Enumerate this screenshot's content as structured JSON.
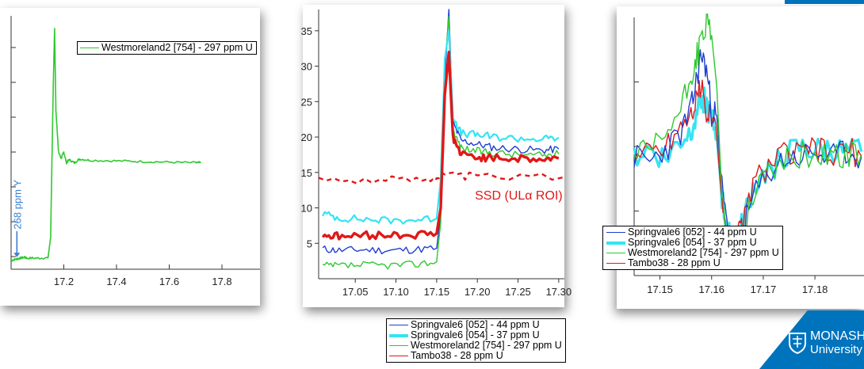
{
  "colors": {
    "blue": "#1f3fd0",
    "cyan": "#35e4f2",
    "green": "#2fc82f",
    "red": "#e01818",
    "annot": "#3b7fd3",
    "brand": "#0073bd"
  },
  "chart_data": [
    {
      "type": "line",
      "xlim": [
        17.0,
        17.8
      ],
      "x_ticks": [
        "17.2",
        "17.4",
        "17.6",
        "17.8"
      ],
      "series": [
        {
          "name": "Westmoreland2 [754]  - 297 ppm U",
          "color": "green",
          "x": [
            17.0,
            17.02,
            17.03,
            17.05,
            17.06,
            17.1,
            17.14,
            17.15,
            17.16,
            17.165,
            17.17,
            17.18,
            17.19,
            17.2,
            17.21,
            17.22,
            17.24,
            17.26,
            17.3,
            17.4,
            17.5,
            17.6,
            17.7,
            17.72
          ],
          "y": [
            1.4,
            1.6,
            1.7,
            1.9,
            1.75,
            1.75,
            1.8,
            5,
            29,
            38,
            25,
            18.5,
            17.5,
            18.5,
            16.8,
            17.3,
            16.8,
            17.4,
            17.2,
            17.1,
            17.0,
            16.9,
            16.8,
            16.8
          ]
        }
      ],
      "annotation": "268 ppm Y",
      "legend": "top-right"
    },
    {
      "type": "line",
      "xlim": [
        17.005,
        17.305
      ],
      "ylim": [
        0,
        38
      ],
      "x_ticks": [
        "17.05",
        "17.10",
        "17.15",
        "17.20",
        "17.25",
        "17.30"
      ],
      "y_ticks": [
        "5",
        "10",
        "15",
        "20",
        "25",
        "30",
        "35"
      ],
      "annotation": "SSD (ULα ROI)",
      "series": [
        {
          "name": "Springvale6 [052] - 44 ppm U",
          "color": "blue",
          "x": [
            17.01,
            17.03,
            17.06,
            17.09,
            17.12,
            17.15,
            17.155,
            17.16,
            17.165,
            17.17,
            17.18,
            17.2,
            17.22,
            17.25,
            17.28,
            17.3
          ],
          "y": [
            4.2,
            4.0,
            4.1,
            4.0,
            4.1,
            4.3,
            9,
            28,
            38,
            22,
            19.5,
            19,
            18.5,
            18.3,
            18.1,
            18.3
          ]
        },
        {
          "name": "Springvale6 [054]  - 37 ppm U",
          "color": "cyan",
          "x": [
            17.01,
            17.03,
            17.06,
            17.09,
            17.12,
            17.15,
            17.155,
            17.16,
            17.165,
            17.17,
            17.18,
            17.2,
            17.22,
            17.25,
            17.28,
            17.3
          ],
          "y": [
            9.2,
            8.6,
            8.4,
            8.2,
            8.3,
            8.5,
            14,
            31,
            35,
            23,
            20.5,
            20.3,
            20.0,
            19.8,
            19.7,
            19.9
          ]
        },
        {
          "name": "Westmoreland2 [754]  - 297 ppm U",
          "color": "green",
          "x": [
            17.01,
            17.03,
            17.06,
            17.09,
            17.12,
            17.15,
            17.155,
            17.16,
            17.165,
            17.17,
            17.18,
            17.2,
            17.22,
            17.25,
            17.28,
            17.3
          ],
          "y": [
            1.8,
            1.8,
            1.9,
            1.9,
            2.0,
            2.4,
            8,
            30,
            37,
            21,
            18.5,
            18.0,
            17.8,
            17.5,
            17.4,
            17.6
          ]
        },
        {
          "name": "Tambo38 - 28 ppm U",
          "color": "red",
          "x": [
            17.01,
            17.03,
            17.06,
            17.09,
            17.12,
            17.15,
            17.155,
            17.16,
            17.165,
            17.17,
            17.18,
            17.2,
            17.22,
            17.25,
            17.28,
            17.3
          ],
          "y": [
            6.2,
            6.0,
            6.1,
            6.2,
            6.2,
            6.4,
            10,
            26,
            32,
            20,
            17.5,
            17.2,
            17.0,
            17.0,
            16.8,
            17.0
          ]
        },
        {
          "name": "SSD",
          "color": "red",
          "dashed": true,
          "x": [
            17.005,
            17.08,
            17.14,
            17.16,
            17.2,
            17.305
          ],
          "y": [
            14.0,
            13.9,
            14.1,
            14.6,
            14.4,
            14.3
          ]
        }
      ],
      "legend": "below"
    },
    {
      "type": "line",
      "xlim": [
        17.145,
        17.1895
      ],
      "ylim": [
        0,
        10
      ],
      "x_ticks": [
        "17.15",
        "17.16",
        "17.17",
        "17.18"
      ],
      "series": [
        {
          "name": "Springvale6 [052] - 44 ppm U",
          "color": "blue",
          "x": [
            17.145,
            17.148,
            17.151,
            17.154,
            17.156,
            17.157,
            17.158,
            17.159,
            17.16,
            17.161,
            17.162,
            17.163,
            17.164,
            17.165,
            17.166,
            17.168,
            17.171,
            17.174,
            17.177,
            17.18,
            17.183,
            17.186,
            17.189
          ],
          "y": [
            4.6,
            4.4,
            4.9,
            5.5,
            6.4,
            7.5,
            8.6,
            8.0,
            6.4,
            6.2,
            3.4,
            1.9,
            1.2,
            1.1,
            1.7,
            3.0,
            4.0,
            4.5,
            4.6,
            4.8,
            4.5,
            4.8,
            4.6
          ]
        },
        {
          "name": "Springvale6 [054]  - 37 ppm U",
          "color": "cyan",
          "x": [
            17.145,
            17.148,
            17.151,
            17.154,
            17.156,
            17.157,
            17.158,
            17.159,
            17.16,
            17.161,
            17.162,
            17.163,
            17.164,
            17.165,
            17.166,
            17.168,
            17.171,
            17.174,
            17.177,
            17.18,
            17.183,
            17.186,
            17.189
          ],
          "y": [
            4.6,
            4.9,
            4.5,
            5.2,
            5.6,
            6.4,
            7.0,
            6.6,
            6.0,
            5.4,
            3.0,
            1.7,
            1.3,
            1.2,
            2.0,
            3.4,
            4.1,
            4.6,
            4.9,
            4.8,
            4.9,
            4.7,
            4.8
          ]
        },
        {
          "name": "Westmoreland2 [754]  - 297 ppm U",
          "color": "green",
          "x": [
            17.145,
            17.148,
            17.151,
            17.154,
            17.156,
            17.157,
            17.158,
            17.159,
            17.16,
            17.161,
            17.162,
            17.163,
            17.164,
            17.165,
            17.166,
            17.168,
            17.171,
            17.174,
            17.177,
            17.18,
            17.183,
            17.186,
            17.189
          ],
          "y": [
            4.7,
            4.7,
            5.4,
            6.4,
            7.6,
            8.4,
            9.1,
            9.7,
            9.3,
            7.3,
            3.0,
            1.4,
            1.0,
            1.1,
            1.8,
            3.2,
            4.1,
            4.4,
            4.7,
            4.6,
            4.8,
            4.6,
            4.7
          ]
        },
        {
          "name": "Tambo38 - 28 ppm U",
          "color": "red",
          "x": [
            17.145,
            17.148,
            17.151,
            17.154,
            17.156,
            17.157,
            17.158,
            17.159,
            17.16,
            17.161,
            17.162,
            17.163,
            17.164,
            17.165,
            17.166,
            17.168,
            17.171,
            17.174,
            17.177,
            17.18,
            17.183,
            17.186,
            17.189
          ],
          "y": [
            4.6,
            4.8,
            5.0,
            5.8,
            6.3,
            6.8,
            7.2,
            6.5,
            6.0,
            5.4,
            2.8,
            1.3,
            1.2,
            1.5,
            1.9,
            3.5,
            4.3,
            4.7,
            4.6,
            5.0,
            4.5,
            4.9,
            4.6
          ]
        }
      ],
      "legend": "bottom-left"
    }
  ],
  "legend_center": [
    {
      "label": "Springvale6 [052] - 44 ppm U",
      "color": "blue"
    },
    {
      "label": "Springvale6 [054]  - 37 ppm U",
      "color": "cyan"
    },
    {
      "label": "Westmoreland2 [754]  - 297 ppm U",
      "color": "green"
    },
    {
      "label": "Tambo38 - 28 ppm U",
      "color": "red"
    }
  ],
  "logo": {
    "line1": "MONASH",
    "line2": "University"
  }
}
